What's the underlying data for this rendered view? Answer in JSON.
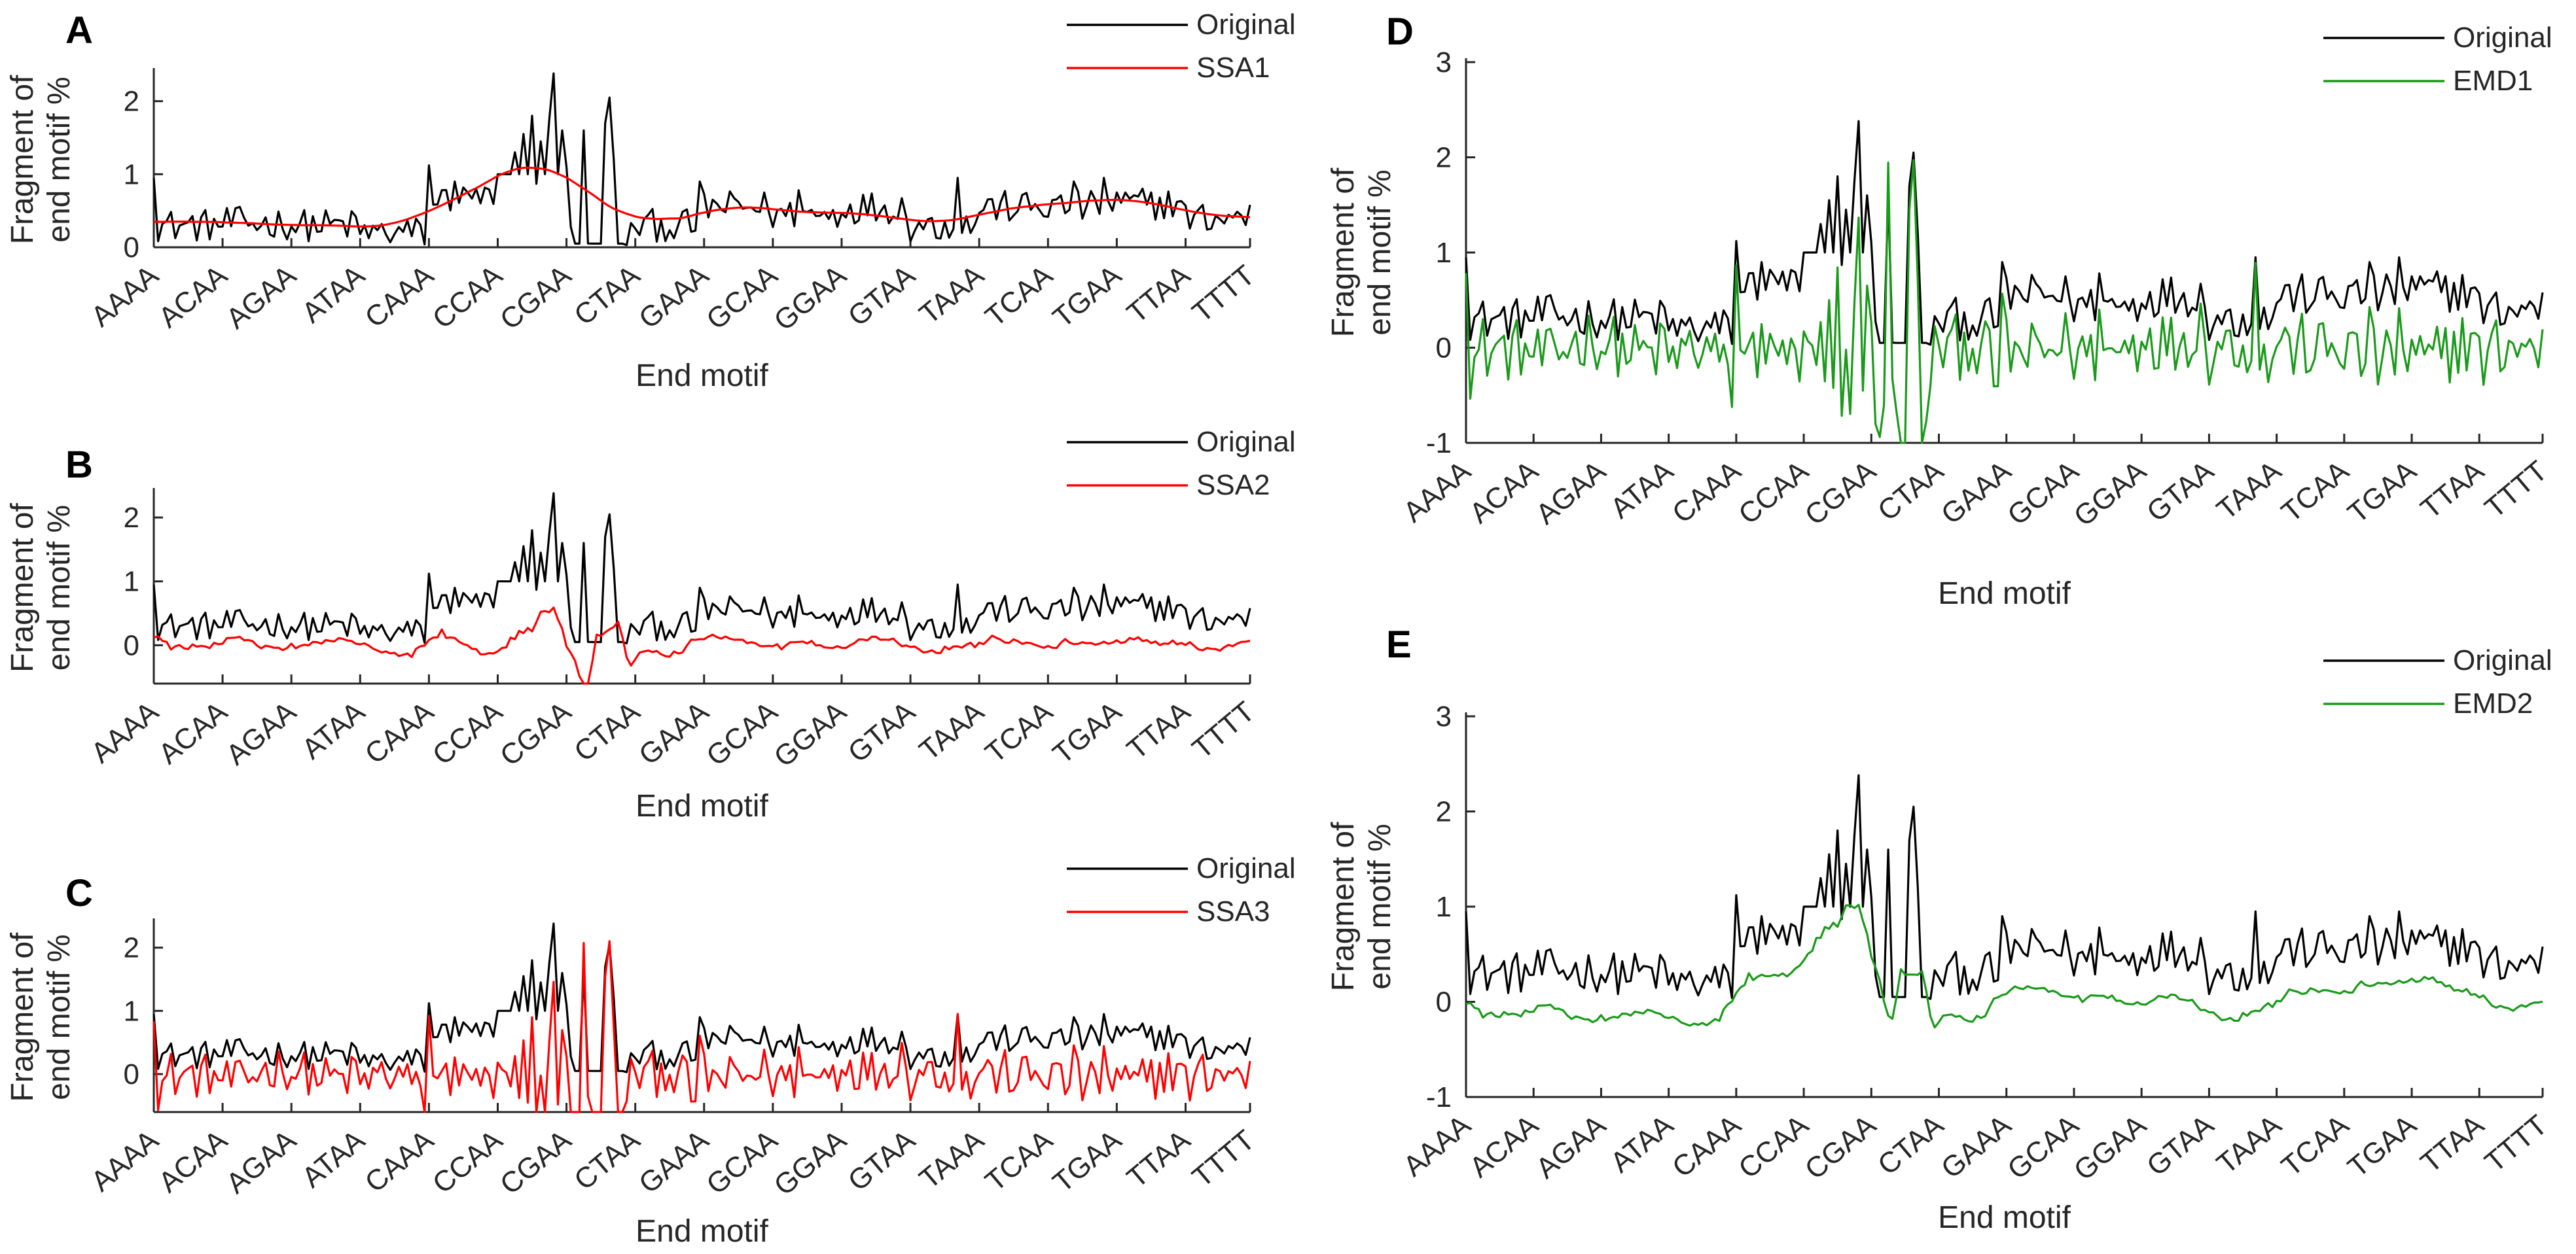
{
  "figure": {
    "panels": [
      "A",
      "B",
      "C",
      "D",
      "E"
    ]
  },
  "chart_data": [
    {
      "panel": "A",
      "type": "line",
      "xlabel": "End motif",
      "ylabel": [
        "Fragment of",
        "end motif %"
      ],
      "x_tick_labels": [
        "AAAA",
        "ACAA",
        "AGAA",
        "ATAA",
        "CAAA",
        "CCAA",
        "CGAA",
        "CTAA",
        "GAAA",
        "GCAA",
        "GGAA",
        "GTAA",
        "TAAA",
        "TCAA",
        "TGAA",
        "TTAA",
        "TTTT"
      ],
      "ylim": [
        0,
        2.4
      ],
      "yticks": [
        0,
        1,
        2
      ],
      "legend": {
        "placement": "top-right"
      },
      "series": [
        {
          "name": "Original",
          "color": "#000000",
          "role": "original"
        },
        {
          "name": "SSA1",
          "color": "#ff0000",
          "role": "ssa1"
        }
      ]
    },
    {
      "panel": "B",
      "type": "line",
      "xlabel": "End motif",
      "ylabel": [
        "Fragment of",
        "end motif %"
      ],
      "x_tick_labels": [
        "AAAA",
        "ACAA",
        "AGAA",
        "ATAA",
        "CAAA",
        "CCAA",
        "CGAA",
        "CTAA",
        "GAAA",
        "GCAA",
        "GGAA",
        "GTAA",
        "TAAA",
        "TCAA",
        "TGAA",
        "TTAA",
        "TTTT"
      ],
      "ylim": [
        -0.6,
        2.4
      ],
      "yticks": [
        0,
        1,
        2
      ],
      "legend": {
        "placement": "top-right"
      },
      "series": [
        {
          "name": "Original",
          "color": "#000000",
          "role": "original"
        },
        {
          "name": "SSA2",
          "color": "#ff0000",
          "role": "ssa2"
        }
      ]
    },
    {
      "panel": "C",
      "type": "line",
      "xlabel": "End motif",
      "ylabel": [
        "Fragment of",
        "end motif %"
      ],
      "x_tick_labels": [
        "AAAA",
        "ACAA",
        "AGAA",
        "ATAA",
        "CAAA",
        "CCAA",
        "CGAA",
        "CTAA",
        "GAAA",
        "GCAA",
        "GGAA",
        "GTAA",
        "TAAA",
        "TCAA",
        "TGAA",
        "TTAA",
        "TTTT"
      ],
      "ylim": [
        -0.6,
        2.4
      ],
      "yticks": [
        0,
        1,
        2
      ],
      "legend": {
        "placement": "top-right"
      },
      "series": [
        {
          "name": "Original",
          "color": "#000000",
          "role": "original"
        },
        {
          "name": "SSA3",
          "color": "#ff0000",
          "role": "ssa3"
        }
      ]
    },
    {
      "panel": "D",
      "type": "line",
      "xlabel": "End motif",
      "ylabel": [
        "Fragment of",
        "end motif %"
      ],
      "x_tick_labels": [
        "AAAA",
        "ACAA",
        "AGAA",
        "ATAA",
        "CAAA",
        "CCAA",
        "CGAA",
        "CTAA",
        "GAAA",
        "GCAA",
        "GGAA",
        "GTAA",
        "TAAA",
        "TCAA",
        "TGAA",
        "TTAA",
        "TTTT"
      ],
      "ylim": [
        -1,
        3
      ],
      "yticks": [
        -1,
        0,
        1,
        2,
        3
      ],
      "legend": {
        "placement": "top-right"
      },
      "series": [
        {
          "name": "Original",
          "color": "#000000",
          "role": "original"
        },
        {
          "name": "EMD1",
          "color": "#1a9a1a",
          "role": "emd1"
        }
      ]
    },
    {
      "panel": "E",
      "type": "line",
      "xlabel": "End motif",
      "ylabel": [
        "Fragment of",
        "end motif %"
      ],
      "x_tick_labels": [
        "AAAA",
        "ACAA",
        "AGAA",
        "ATAA",
        "CAAA",
        "CCAA",
        "CGAA",
        "CTAA",
        "GAAA",
        "GCAA",
        "GGAA",
        "GTAA",
        "TAAA",
        "TCAA",
        "TGAA",
        "TTAA",
        "TTTT"
      ],
      "ylim": [
        -1,
        3
      ],
      "yticks": [
        -1,
        0,
        1,
        2,
        3
      ],
      "legend": {
        "placement": "top-right"
      },
      "series": [
        {
          "name": "Original",
          "color": "#000000",
          "role": "original"
        },
        {
          "name": "EMD2",
          "color": "#1a9a1a",
          "role": "emd2"
        }
      ]
    }
  ]
}
